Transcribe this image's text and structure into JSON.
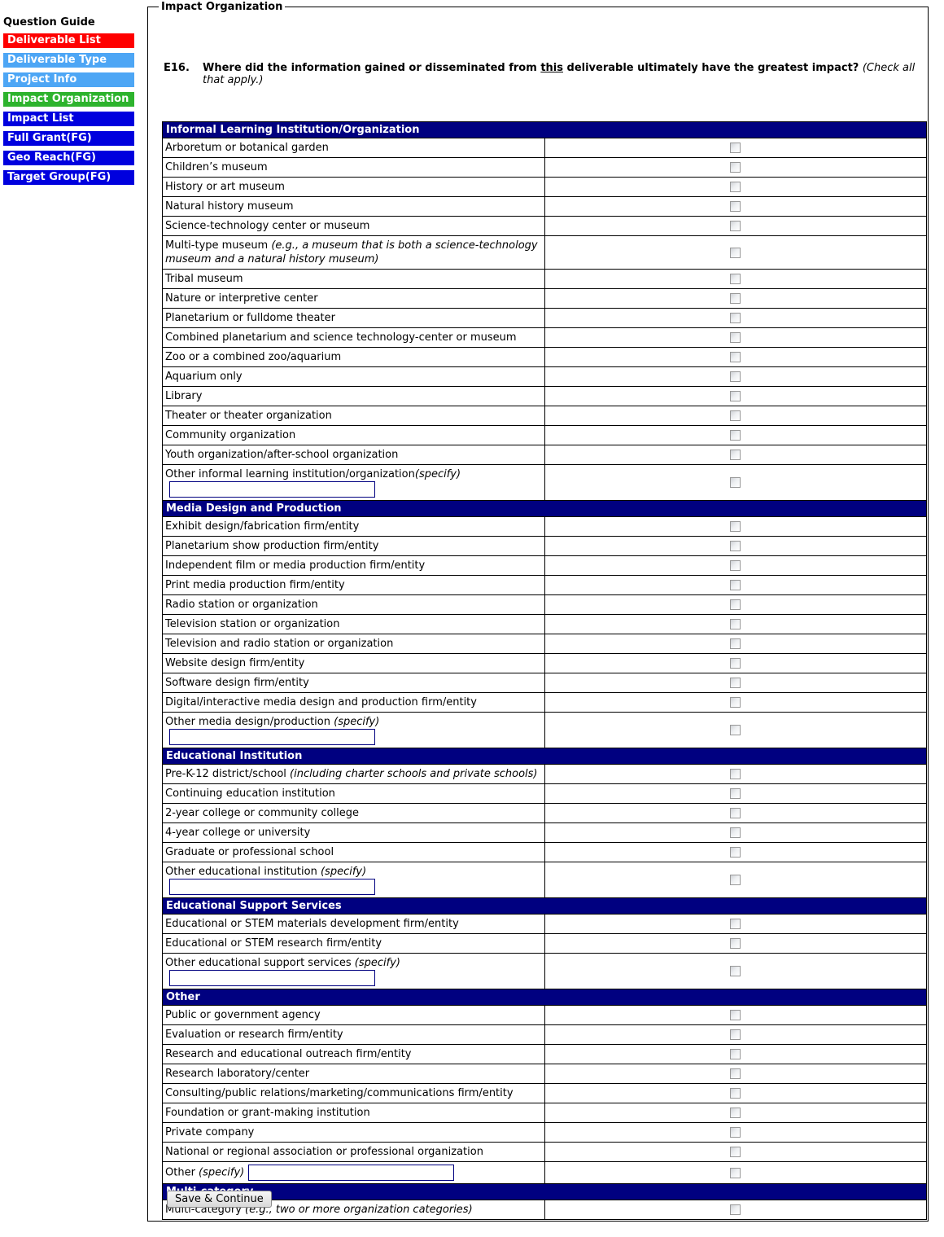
{
  "colors": {
    "section_header_bg": "#000080",
    "input_border": "#000080",
    "sidebar_red": "#FF0000",
    "sidebar_lightblue": "#4DA6F5",
    "sidebar_green": "#2DB32D",
    "sidebar_blue": "#0000DE"
  },
  "sidebar": {
    "title": "Question Guide",
    "items": [
      {
        "label": "Deliverable List",
        "color": "#FF0000"
      },
      {
        "label": "Deliverable Type",
        "color": "#4DA6F5"
      },
      {
        "label": "Project Info",
        "color": "#4DA6F5"
      },
      {
        "label": "Impact Organization",
        "color": "#2DB32D"
      },
      {
        "label": "Impact List",
        "color": "#0000DE"
      },
      {
        "label": "Full Grant(FG)",
        "color": "#0000DE"
      },
      {
        "label": "Geo Reach(FG)",
        "color": "#0000DE"
      },
      {
        "label": "Target Group(FG)",
        "color": "#0000DE"
      }
    ]
  },
  "form": {
    "legend": "Impact Organization",
    "question": {
      "number": "E16.",
      "before_underline": "Where did the information gained or disseminated from ",
      "underlined": "this",
      "after_underline": " deliverable ultimately have the greatest impact? ",
      "note": "(Check all that apply.)"
    },
    "sections": [
      {
        "title": "Informal Learning Institution/Organization",
        "rows": [
          {
            "label": "Arboretum or botanical garden"
          },
          {
            "label": "Children’s museum"
          },
          {
            "label": "History or art museum"
          },
          {
            "label": "Natural history museum"
          },
          {
            "label": "Science-technology center or museum"
          },
          {
            "label": "Multi-type museum",
            "note": "(e.g., a museum that is both a science-technology museum and a natural history museum)"
          },
          {
            "label": "Tribal museum"
          },
          {
            "label": "Nature or interpretive center"
          },
          {
            "label": "Planetarium or fulldome theater"
          },
          {
            "label": "Combined planetarium and science technology-center or museum"
          },
          {
            "label": "Zoo or a combined zoo/aquarium"
          },
          {
            "label": "Aquarium only"
          },
          {
            "label": "Library"
          },
          {
            "label": "Theater or theater organization"
          },
          {
            "label": "Community organization"
          },
          {
            "label": "Youth organization/after-school organization"
          },
          {
            "label": "Other informal learning institution/organization",
            "note": "(specify)",
            "sep": "",
            "input": true
          }
        ]
      },
      {
        "title": "Media Design and Production",
        "rows": [
          {
            "label": "Exhibit design/fabrication firm/entity"
          },
          {
            "label": "Planetarium show production firm/entity"
          },
          {
            "label": "Independent film or media production firm/entity"
          },
          {
            "label": "Print media production firm/entity"
          },
          {
            "label": "Radio station or organization"
          },
          {
            "label": "Television station or organization"
          },
          {
            "label": "Television and radio station or organization"
          },
          {
            "label": "Website design firm/entity"
          },
          {
            "label": "Software design firm/entity"
          },
          {
            "label": "Digital/interactive media design and production firm/entity"
          },
          {
            "label": "Other media design/production",
            "note": "(specify)",
            "input": true
          }
        ]
      },
      {
        "title": "Educational Institution",
        "rows": [
          {
            "label": "Pre-K-12 district/school",
            "note": "(including charter schools and private schools)"
          },
          {
            "label": "Continuing education institution"
          },
          {
            "label": "2-year college or community college"
          },
          {
            "label": "4-year college or university"
          },
          {
            "label": "Graduate or professional school"
          },
          {
            "label": "Other educational institution",
            "note": "(specify)",
            "input": true
          }
        ]
      },
      {
        "title": "Educational Support Services",
        "rows": [
          {
            "label": "Educational or STEM materials development firm/entity"
          },
          {
            "label": "Educational or STEM research firm/entity"
          },
          {
            "label": "Other educational support services",
            "note": "(specify)",
            "input": true
          }
        ]
      },
      {
        "title": "Other",
        "rows": [
          {
            "label": "Public or government agency"
          },
          {
            "label": "Evaluation or research firm/entity"
          },
          {
            "label": "Research and educational outreach firm/entity"
          },
          {
            "label": "Research laboratory/center"
          },
          {
            "label": "Consulting/public relations/marketing/communications firm/entity"
          },
          {
            "label": "Foundation or grant-making institution"
          },
          {
            "label": "Private company"
          },
          {
            "label": "National or regional association or professional organization"
          },
          {
            "label": "Other",
            "note": "(specify)",
            "input": true
          }
        ]
      },
      {
        "title": "Multi-category",
        "rows": [
          {
            "label": "Multi-category",
            "note": "(e.g., two or more organization categories)"
          }
        ]
      }
    ],
    "inputs_value": "",
    "save_button": "Save & Continue"
  }
}
